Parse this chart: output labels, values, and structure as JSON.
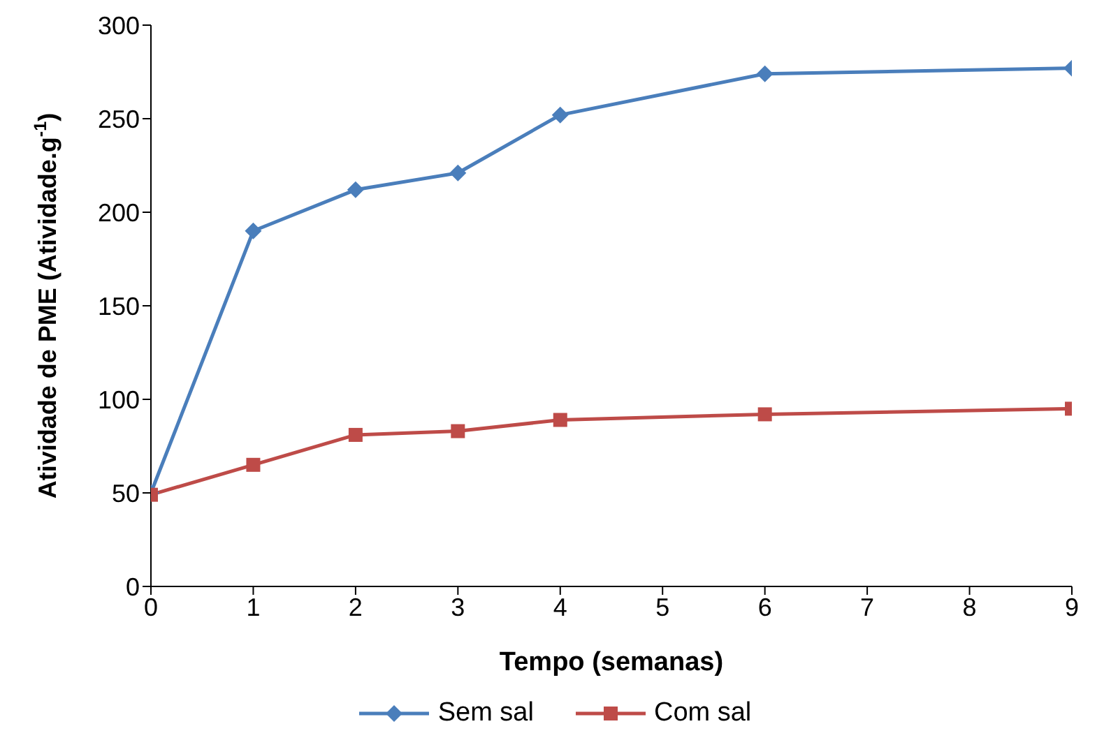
{
  "chart_data": {
    "type": "line",
    "xlabel": "Tempo (semanas)",
    "ylabel": "Atividade de PME (Atividade.g$^{-1}$)",
    "x": [
      0,
      1,
      2,
      3,
      4,
      6,
      9
    ],
    "series": [
      {
        "name": "Sem sal",
        "color": "#4a7ebb",
        "marker": "diamond",
        "values": [
          50,
          190,
          212,
          221,
          252,
          274,
          277
        ]
      },
      {
        "name": "Com sal",
        "color": "#be4b48",
        "marker": "square",
        "values": [
          49,
          65,
          81,
          83,
          89,
          92,
          95
        ]
      }
    ],
    "xlim": [
      0,
      9
    ],
    "xticks": [
      0,
      1,
      2,
      3,
      4,
      5,
      6,
      7,
      8,
      9
    ],
    "ylim": [
      0,
      300
    ],
    "yticks": [
      0,
      50,
      100,
      150,
      200,
      250,
      300
    ],
    "grid": false,
    "legend": "bottom",
    "line_style": "solid"
  }
}
